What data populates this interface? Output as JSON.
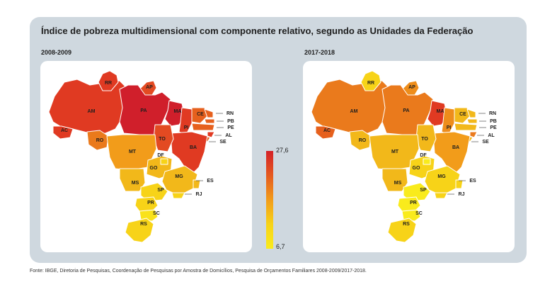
{
  "title": "Índice de pobreza multidimensional com componente relativo, segundo as Unidades da Federação",
  "source": "Fonte: IBGE, Diretoria de Pesquisas, Coordenação de Pesquisas por Amostra de Domicílios, Pesquisa de Orçamentos Familiares 2008-2009/2017-2018.",
  "legend": {
    "max": "27,6",
    "min": "6,7",
    "colors": [
      "#d42128",
      "#f9eb1c"
    ]
  },
  "maps": [
    {
      "period": "2008-2009",
      "states": [
        {
          "code": "AM",
          "color": "#e03a22"
        },
        {
          "code": "RR",
          "color": "#e03a22"
        },
        {
          "code": "AP",
          "color": "#e34a22"
        },
        {
          "code": "PA",
          "color": "#d01f2b"
        },
        {
          "code": "AC",
          "color": "#e03a22"
        },
        {
          "code": "RO",
          "color": "#ea7a1c"
        },
        {
          "code": "MA",
          "color": "#d01f2b"
        },
        {
          "code": "PI",
          "color": "#e03a22"
        },
        {
          "code": "CE",
          "color": "#e6601d"
        },
        {
          "code": "RN",
          "color": "#e6601d"
        },
        {
          "code": "PB",
          "color": "#e6601d"
        },
        {
          "code": "PE",
          "color": "#e6601d"
        },
        {
          "code": "AL",
          "color": "#e03a22"
        },
        {
          "code": "SE",
          "color": "#e6601d"
        },
        {
          "code": "BA",
          "color": "#e03a22"
        },
        {
          "code": "TO",
          "color": "#e34a22"
        },
        {
          "code": "MT",
          "color": "#f29c1a"
        },
        {
          "code": "GO",
          "color": "#f2b81a"
        },
        {
          "code": "DF",
          "color": "#f7d318"
        },
        {
          "code": "MS",
          "color": "#f2b81a"
        },
        {
          "code": "MG",
          "color": "#f2b81a"
        },
        {
          "code": "ES",
          "color": "#f2b81a"
        },
        {
          "code": "SP",
          "color": "#f7d318"
        },
        {
          "code": "RJ",
          "color": "#f7d318"
        },
        {
          "code": "PR",
          "color": "#f7d318"
        },
        {
          "code": "SC",
          "color": "#f9e21c"
        },
        {
          "code": "RS",
          "color": "#f7d318"
        }
      ]
    },
    {
      "period": "2017-2018",
      "states": [
        {
          "code": "AM",
          "color": "#ea7a1c"
        },
        {
          "code": "RR",
          "color": "#f7d318"
        },
        {
          "code": "AP",
          "color": "#ee8d1b"
        },
        {
          "code": "PA",
          "color": "#ea7a1c"
        },
        {
          "code": "AC",
          "color": "#e6601d"
        },
        {
          "code": "RO",
          "color": "#f2b81a"
        },
        {
          "code": "MA",
          "color": "#e03a22"
        },
        {
          "code": "PI",
          "color": "#ee8d1b"
        },
        {
          "code": "CE",
          "color": "#f2b81a"
        },
        {
          "code": "RN",
          "color": "#f2b81a"
        },
        {
          "code": "PB",
          "color": "#f2b81a"
        },
        {
          "code": "PE",
          "color": "#f2b81a"
        },
        {
          "code": "AL",
          "color": "#ea7a1c"
        },
        {
          "code": "SE",
          "color": "#f2b81a"
        },
        {
          "code": "BA",
          "color": "#f29c1a"
        },
        {
          "code": "TO",
          "color": "#f2b81a"
        },
        {
          "code": "MT",
          "color": "#f2b81a"
        },
        {
          "code": "GO",
          "color": "#f7d318"
        },
        {
          "code": "DF",
          "color": "#f9eb1c"
        },
        {
          "code": "MS",
          "color": "#f2b81a"
        },
        {
          "code": "MG",
          "color": "#f7d318"
        },
        {
          "code": "ES",
          "color": "#f7d318"
        },
        {
          "code": "SP",
          "color": "#f9eb1c"
        },
        {
          "code": "RJ",
          "color": "#f7d318"
        },
        {
          "code": "PR",
          "color": "#f9eb1c"
        },
        {
          "code": "SC",
          "color": "#f9eb1c"
        },
        {
          "code": "RS",
          "color": "#f7d318"
        }
      ]
    }
  ]
}
